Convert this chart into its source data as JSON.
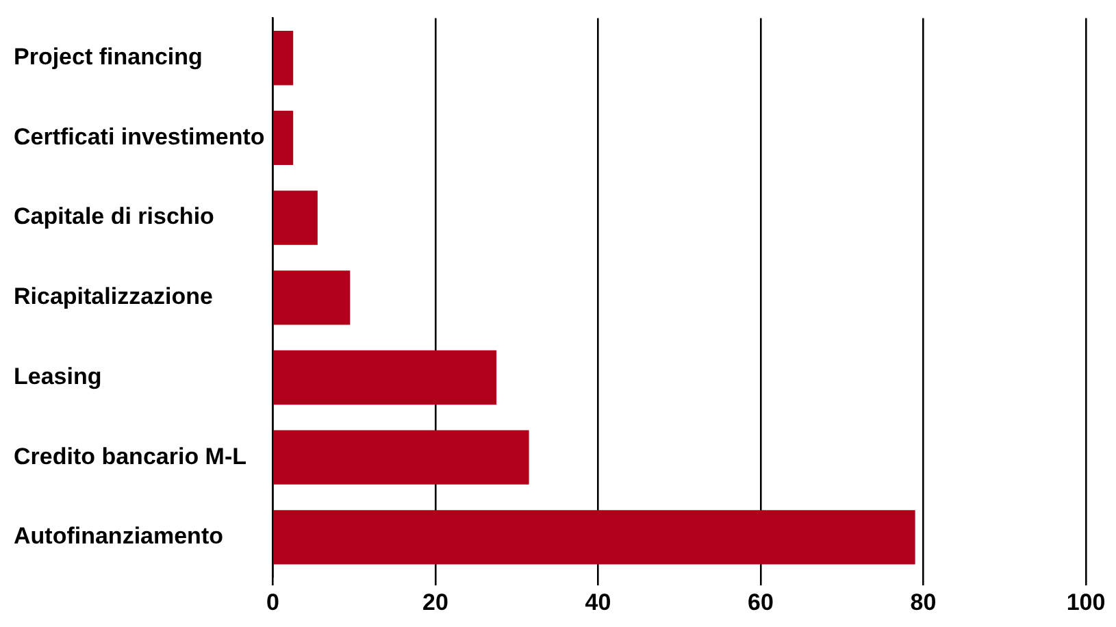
{
  "chart_data": {
    "type": "bar",
    "orientation": "horizontal",
    "categories": [
      "Project financing",
      "Certficati investimento",
      "Capitale di rischio",
      "Ricapitalizzazione",
      "Leasing",
      "Credito bancario M-L",
      "Autofinanziamento"
    ],
    "values": [
      2.5,
      2.5,
      5.5,
      9.5,
      27.5,
      31.5,
      79
    ],
    "color": "#b0001a",
    "xlim": [
      0,
      100
    ],
    "xticks": [
      0,
      20,
      40,
      60,
      80,
      100
    ],
    "grid": "x",
    "legend": false
  }
}
